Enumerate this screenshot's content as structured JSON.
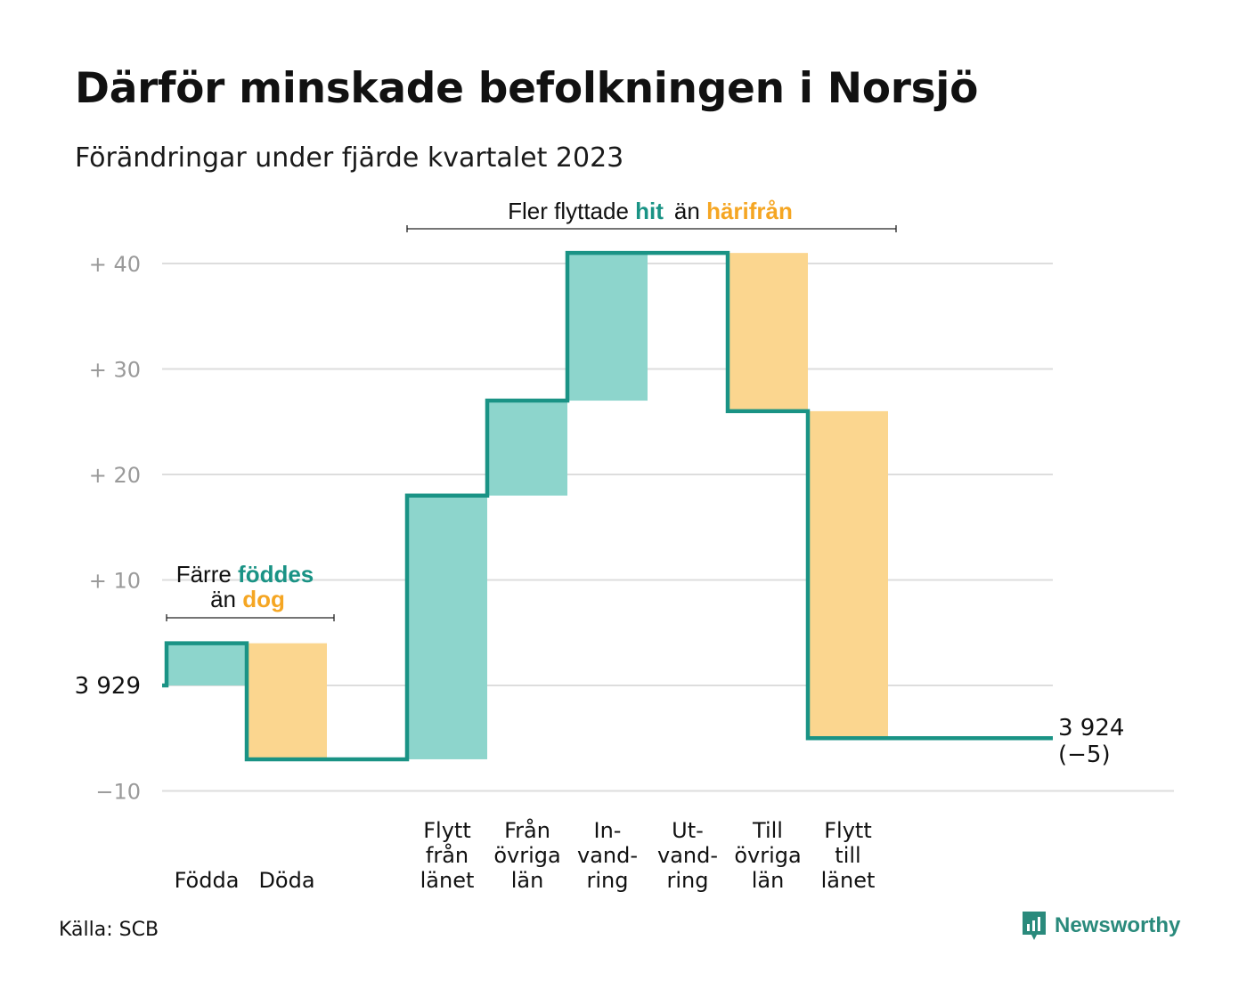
{
  "title": "Därför minskade befolkningen i Norsjö",
  "subtitle": "Förändringar under fjärde kvartalet 2023",
  "source": "Källa: SCB",
  "brand": "Newsworthy",
  "colors": {
    "teal": "#1a9385",
    "teal_fill": "#8dd5cc",
    "orange": "#f5a623",
    "orange_fill": "#fbd68f"
  },
  "annotations": {
    "births_line1_a": "Färre ",
    "births_line1_b": "föddes",
    "births_line2_a": "än ",
    "births_line2_b": "dog",
    "migration_a": "Fler flyttade ",
    "migration_b": "hit",
    "migration_c": "än ",
    "migration_d": "härifrån"
  },
  "chart_data": {
    "type": "waterfall",
    "start_label": "3  929",
    "end_label": "3 924",
    "end_change": "(−5)",
    "ylim": [
      -10,
      42
    ],
    "y_ticks": [
      {
        "value": 40,
        "label": "+  40"
      },
      {
        "value": 30,
        "label": "+  30"
      },
      {
        "value": 20,
        "label": "+  20"
      },
      {
        "value": 10,
        "label": "+  10"
      },
      {
        "value": 0,
        "label": "3  929"
      },
      {
        "value": -10,
        "label": "−10"
      }
    ],
    "steps": [
      {
        "category": [
          "Födda"
        ],
        "change": 4,
        "kind": "in"
      },
      {
        "category": [
          "Döda"
        ],
        "change": -11,
        "kind": "out"
      },
      {
        "category": [
          ""
        ],
        "change": 0,
        "kind": "gap"
      },
      {
        "category": [
          "Flytt",
          "från",
          "länet"
        ],
        "change": 25,
        "kind": "in"
      },
      {
        "category": [
          "Från",
          "övriga",
          "län"
        ],
        "change": 9,
        "kind": "in"
      },
      {
        "category": [
          "In-",
          "vand-",
          "ring"
        ],
        "change": 14,
        "kind": "in"
      },
      {
        "category": [
          "Ut-",
          "vand-",
          "ring"
        ],
        "change": 0,
        "kind": "out"
      },
      {
        "category": [
          "Till",
          "övriga",
          "län"
        ],
        "change": -15,
        "kind": "out"
      },
      {
        "category": [
          "Flytt",
          "till",
          "länet"
        ],
        "change": -31,
        "kind": "out"
      }
    ],
    "net_change": -5
  }
}
